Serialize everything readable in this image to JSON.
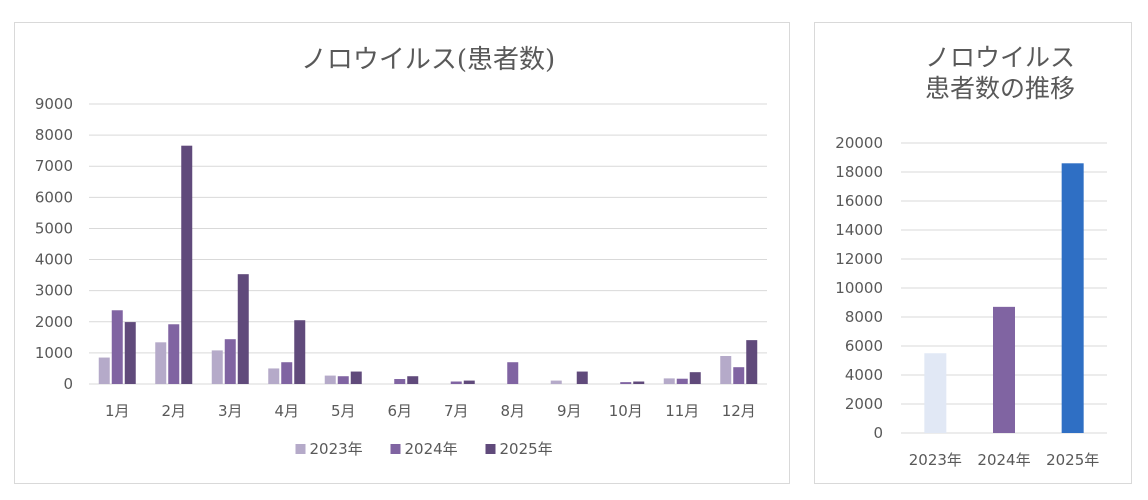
{
  "chart_data": [
    {
      "type": "bar",
      "title": "ノロウイルス(患者数)",
      "categories": [
        "1月",
        "2月",
        "3月",
        "4月",
        "5月",
        "6月",
        "7月",
        "8月",
        "9月",
        "10月",
        "11月",
        "12月"
      ],
      "series": [
        {
          "name": "2023年",
          "color": "#b5aac9",
          "values": [
            850,
            1340,
            1080,
            500,
            270,
            0,
            0,
            0,
            110,
            0,
            180,
            900
          ]
        },
        {
          "name": "2024年",
          "color": "#8064a2",
          "values": [
            2370,
            1920,
            1440,
            700,
            250,
            160,
            80,
            700,
            0,
            60,
            170,
            540
          ]
        },
        {
          "name": "2025年",
          "color": "#604a7b",
          "values": [
            1990,
            7660,
            3530,
            2050,
            400,
            250,
            110,
            0,
            400,
            80,
            380,
            1410
          ]
        }
      ],
      "ylim": [
        0,
        9000
      ],
      "yticks": [
        0,
        1000,
        2000,
        3000,
        4000,
        5000,
        6000,
        7000,
        8000,
        9000
      ],
      "grid": true,
      "legend_position": "bottom"
    },
    {
      "type": "bar",
      "title": [
        "ノロウイルス",
        "患者数の推移"
      ],
      "categories": [
        "2023年",
        "2024年",
        "2025年"
      ],
      "values": [
        5500,
        8700,
        18600
      ],
      "colors": [
        "#e1e8f5",
        "#8064a2",
        "#2f6fc4"
      ],
      "ylim": [
        0,
        20000
      ],
      "yticks": [
        0,
        2000,
        4000,
        6000,
        8000,
        10000,
        12000,
        14000,
        16000,
        18000,
        20000
      ],
      "grid": true
    }
  ]
}
